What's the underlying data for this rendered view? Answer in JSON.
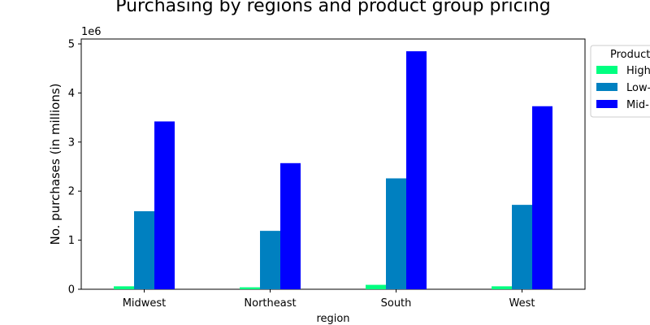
{
  "chart_data": {
    "type": "bar",
    "title": "Purchasing by regions and product group pricing",
    "xlabel": "region",
    "ylabel": "No. purchases (in millions)",
    "y_offset_label": "1e6",
    "categories": [
      "Midwest",
      "Northeast",
      "South",
      "West"
    ],
    "y_ticks": [
      "0",
      "1",
      "2",
      "3",
      "4",
      "5"
    ],
    "ylim": [
      0,
      5.1
    ],
    "legend": {
      "title": "Product",
      "placement": "upper-right-outside"
    },
    "series": [
      {
        "name": "High",
        "color": "#00ff80",
        "values": [
          0.06,
          0.04,
          0.09,
          0.06
        ]
      },
      {
        "name": "Low-",
        "color": "#0080c0",
        "values": [
          1.59,
          1.19,
          2.26,
          1.72
        ]
      },
      {
        "name": "Mid-",
        "color": "#0000ff",
        "values": [
          3.42,
          2.57,
          4.85,
          3.73
        ]
      }
    ]
  }
}
